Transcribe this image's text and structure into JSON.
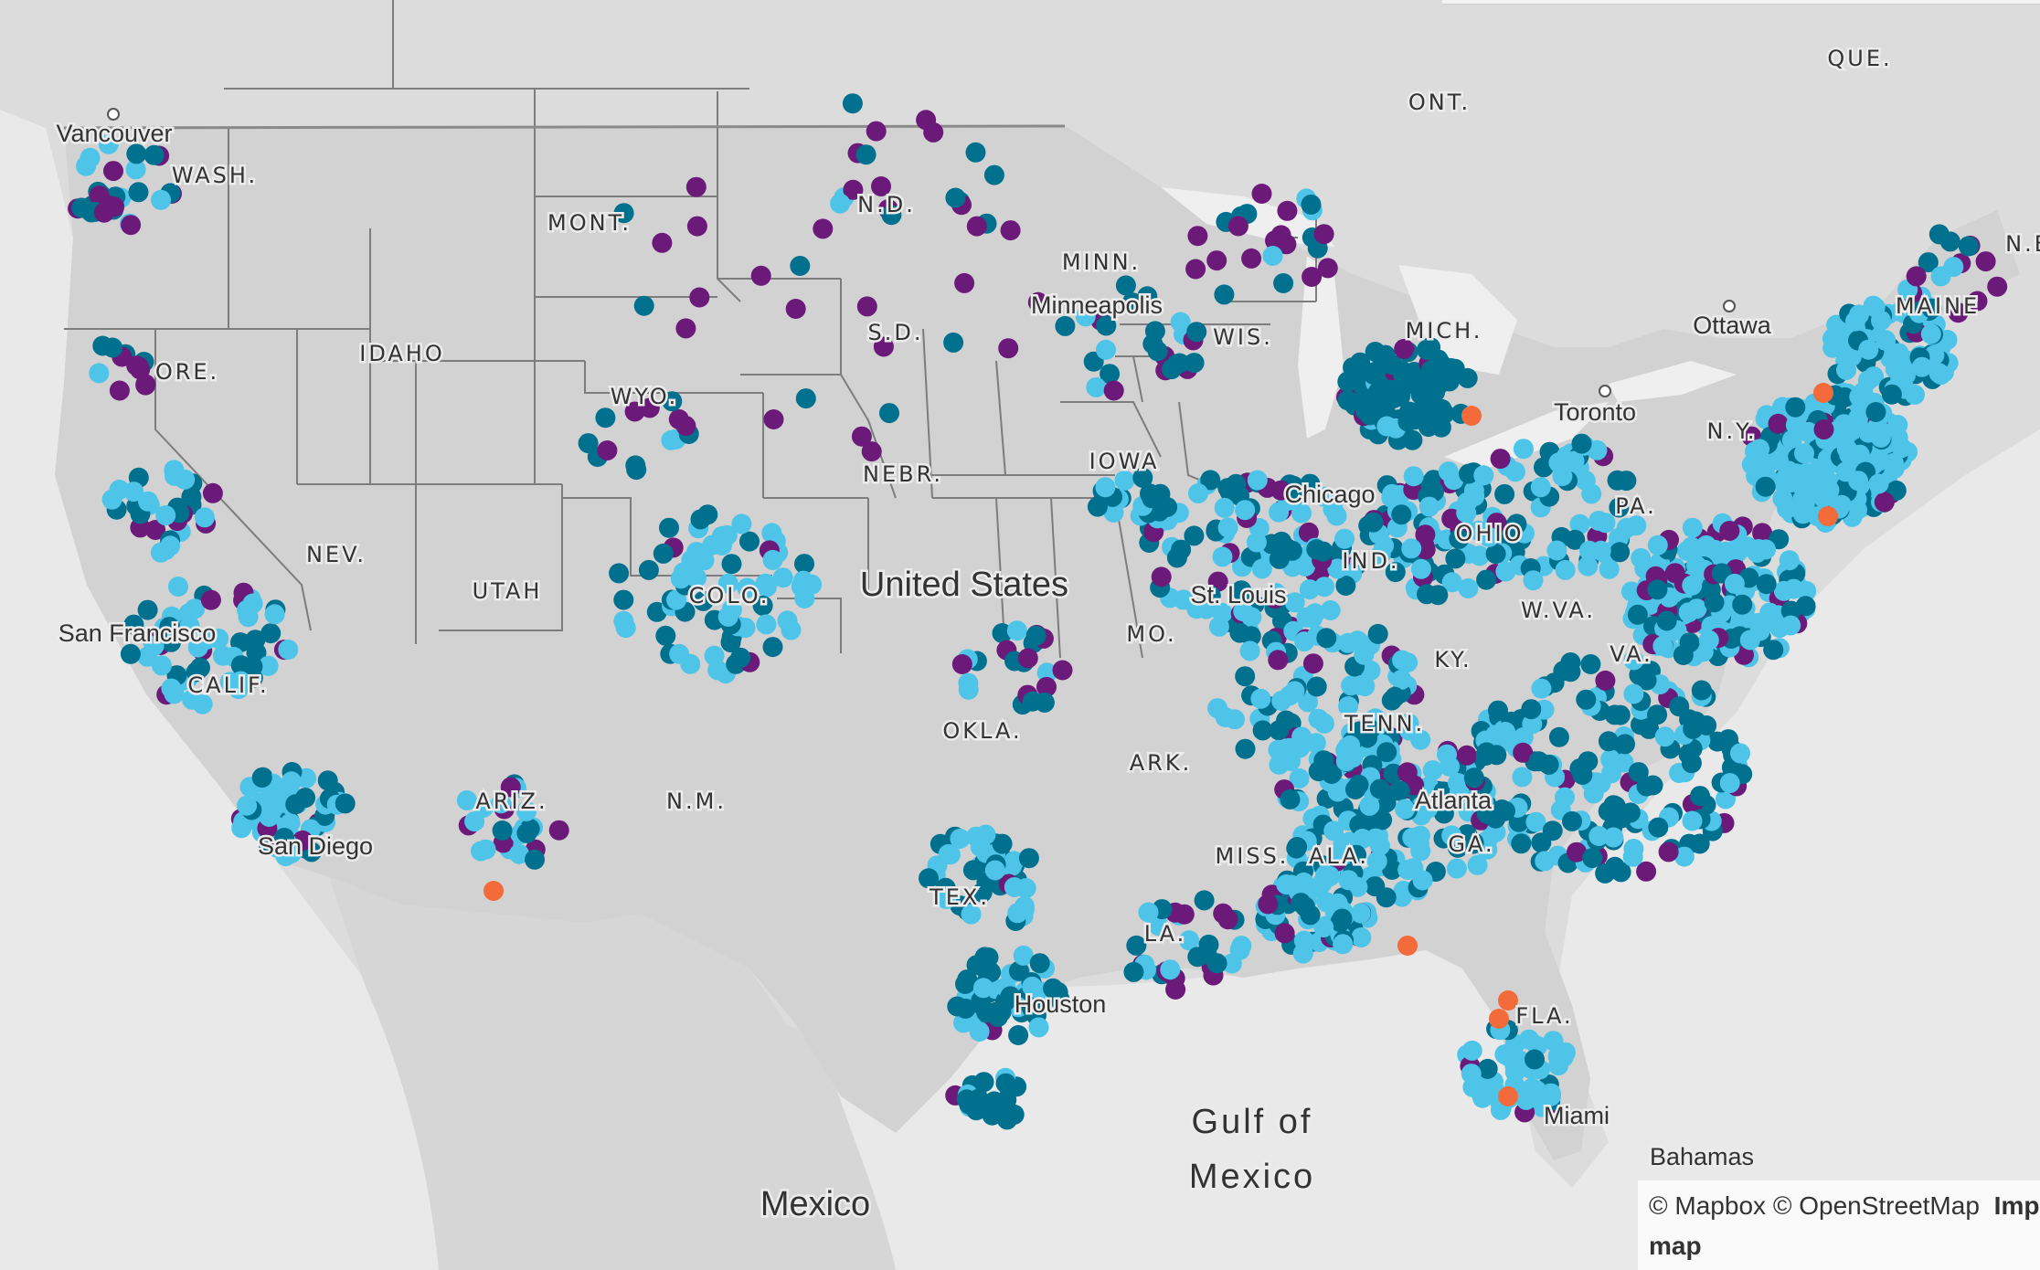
{
  "map": {
    "colors": {
      "land": "#d8d8d8",
      "land_usa": "#d1d1d1",
      "water": "#eeeeee",
      "ocean": "#e8e8e8",
      "state_border": "#7b7b7b",
      "country_border": "#8a8a8a",
      "label": "#333333"
    },
    "country_labels": {
      "usa": "United States",
      "mexico": "Mexico"
    },
    "water_labels": {
      "gulf_line1": "Gulf of",
      "gulf_line2": "Mexico"
    },
    "state_labels": [
      "WASH.",
      "ORE.",
      "CALIF.",
      "NEV.",
      "IDAHO",
      "MONT.",
      "WYO.",
      "UTAH",
      "ARIZ.",
      "N.M.",
      "N.D.",
      "S.D.",
      "NEBR.",
      "OKLA.",
      "TEX.",
      "MINN.",
      "IOWA",
      "MO.",
      "ARK.",
      "LA.",
      "MISS.",
      "ALA.",
      "WIS.",
      "MICH.",
      "IND.",
      "OHIO",
      "KY.",
      "TENN.",
      "W.VA.",
      "VA.",
      "PA.",
      "N.Y.",
      "MAINE",
      "GA.",
      "FLA.",
      "COLO."
    ],
    "province_labels": [
      "ONT.",
      "QUE.",
      "N.B."
    ],
    "city_labels": [
      "Vancouver",
      "San Francisco",
      "San Diego",
      "Minneapolis",
      "Chicago",
      "St. Louis",
      "Houston",
      "Miami",
      "Atlanta",
      "Ottawa",
      "Toronto",
      "Bahamas"
    ],
    "markers": {
      "legend_colors": {
        "dark_purple": "#6b1a7a",
        "dark_teal": "#00708f",
        "light_blue": "#4dc4e8",
        "orange": "#f36b3b"
      }
    }
  },
  "attribution": {
    "mapbox": "© Mapbox",
    "osm": "© OpenStreetMap",
    "improve_line1": "Improve this",
    "improve_line2": "map"
  }
}
